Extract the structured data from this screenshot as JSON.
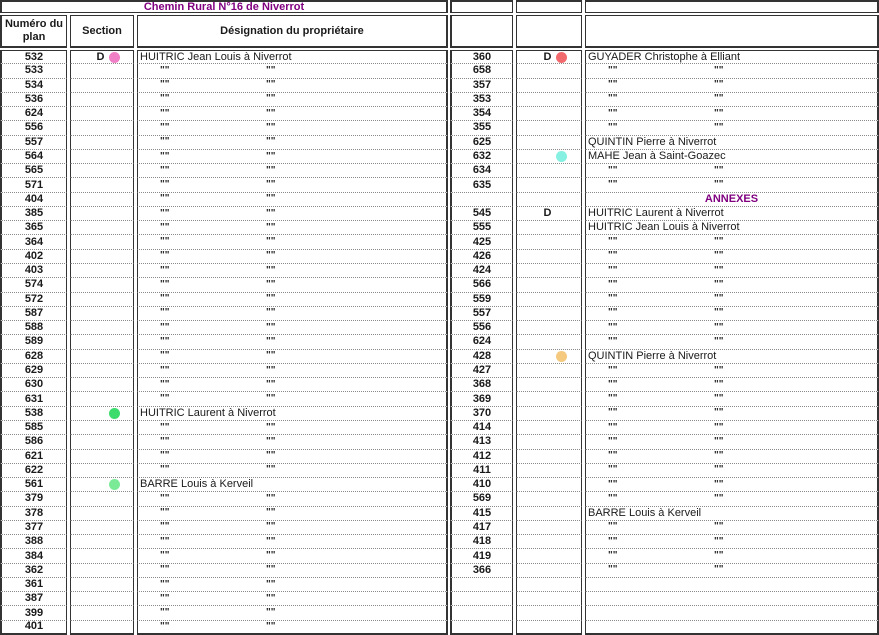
{
  "title": "Chemin Rural N°16 de Niverrot",
  "annexes_label": "ANNEXES",
  "ditto_mark": "\"\"",
  "headers": {
    "plan": "Numéro du plan",
    "section": "Section",
    "designation": "Désignation du propriétaire"
  },
  "colors": {
    "title_text": "#800080",
    "annexes_text": "#800080",
    "border": "#333333",
    "row_divider": "#8a8a8a",
    "dots": {
      "pink": "#F07FC5",
      "red": "#F16A6D",
      "cyan": "#86F0E2",
      "green": "#3CDC6C",
      "lightgreen": "#7BEA97",
      "orange": "#F5C97E"
    }
  },
  "left_table": {
    "rows": [
      {
        "plan": "532",
        "section": "D",
        "dot": "pink",
        "designation": "HUITRIC Jean Louis à Niverrot"
      },
      {
        "plan": "533",
        "ditto": true
      },
      {
        "plan": "534",
        "ditto": true
      },
      {
        "plan": "536",
        "ditto": true
      },
      {
        "plan": "624",
        "ditto": true
      },
      {
        "plan": "556",
        "ditto": true
      },
      {
        "plan": "557",
        "ditto": true
      },
      {
        "plan": "564",
        "ditto": true
      },
      {
        "plan": "565",
        "ditto": true
      },
      {
        "plan": "571",
        "ditto": true
      },
      {
        "plan": "404",
        "ditto": true
      },
      {
        "plan": "385",
        "ditto": true
      },
      {
        "plan": "365",
        "ditto": true
      },
      {
        "plan": "364",
        "ditto": true
      },
      {
        "plan": "402",
        "ditto": true
      },
      {
        "plan": "403",
        "ditto": true
      },
      {
        "plan": "574",
        "ditto": true
      },
      {
        "plan": "572",
        "ditto": true
      },
      {
        "plan": "587",
        "ditto": true
      },
      {
        "plan": "588",
        "ditto": true
      },
      {
        "plan": "589",
        "ditto": true
      },
      {
        "plan": "628",
        "ditto": true
      },
      {
        "plan": "629",
        "ditto": true
      },
      {
        "plan": "630",
        "ditto": true
      },
      {
        "plan": "631",
        "ditto": true
      },
      {
        "plan": "538",
        "dot": "green",
        "designation": "HUITRIC Laurent à Niverrot"
      },
      {
        "plan": "585",
        "ditto": true
      },
      {
        "plan": "586",
        "ditto": true
      },
      {
        "plan": "621",
        "ditto": true
      },
      {
        "plan": "622",
        "ditto": true
      },
      {
        "plan": "561",
        "dot": "lightgreen",
        "designation": "BARRE Louis à Kerveil"
      },
      {
        "plan": "379",
        "ditto": true
      },
      {
        "plan": "378",
        "ditto": true
      },
      {
        "plan": "377",
        "ditto": true
      },
      {
        "plan": "388",
        "ditto": true
      },
      {
        "plan": "384",
        "ditto": true
      },
      {
        "plan": "362",
        "ditto": true
      },
      {
        "plan": "361",
        "ditto": true
      },
      {
        "plan": "387",
        "ditto": true
      },
      {
        "plan": "399",
        "ditto": true
      },
      {
        "plan": "401",
        "ditto": true
      }
    ]
  },
  "right_table": {
    "rows": [
      {
        "plan": "360",
        "section": "D",
        "dot": "red",
        "designation": "GUYADER Christophe à Elliant"
      },
      {
        "plan": "658",
        "ditto": true
      },
      {
        "plan": "357",
        "ditto": true
      },
      {
        "plan": "353",
        "ditto": true
      },
      {
        "plan": "354",
        "ditto": true
      },
      {
        "plan": "355",
        "ditto": true
      },
      {
        "plan": "625",
        "designation": "QUINTIN Pierre à Niverrot"
      },
      {
        "plan": "632",
        "dot": "cyan",
        "designation": "MAHE Jean à Saint-Goazec"
      },
      {
        "plan": "634",
        "ditto": true
      },
      {
        "plan": "635",
        "ditto": true
      },
      {
        "plan": "",
        "annexes": true
      },
      {
        "plan": "545",
        "section": "D",
        "designation": "HUITRIC Laurent à Niverrot"
      },
      {
        "plan": "555",
        "designation": "HUITRIC Jean Louis à Niverrot"
      },
      {
        "plan": "425",
        "ditto": true
      },
      {
        "plan": "426",
        "ditto": true
      },
      {
        "plan": "424",
        "ditto": true
      },
      {
        "plan": "566",
        "ditto": true
      },
      {
        "plan": "559",
        "ditto": true
      },
      {
        "plan": "557",
        "ditto": true
      },
      {
        "plan": "556",
        "ditto": true
      },
      {
        "plan": "624",
        "ditto": true
      },
      {
        "plan": "428",
        "dot": "orange",
        "designation": "QUINTIN Pierre à Niverrot"
      },
      {
        "plan": "427",
        "ditto": true
      },
      {
        "plan": "368",
        "ditto": true
      },
      {
        "plan": "369",
        "ditto": true
      },
      {
        "plan": "370",
        "ditto": true
      },
      {
        "plan": "414",
        "ditto": true
      },
      {
        "plan": "413",
        "ditto": true
      },
      {
        "plan": "412",
        "ditto": true
      },
      {
        "plan": "411",
        "ditto": true
      },
      {
        "plan": "410",
        "ditto": true
      },
      {
        "plan": "569",
        "ditto": true
      },
      {
        "plan": "415",
        "designation": "BARRE Louis à Kerveil"
      },
      {
        "plan": "417",
        "ditto": true
      },
      {
        "plan": "418",
        "ditto": true
      },
      {
        "plan": "419",
        "ditto": true
      },
      {
        "plan": "366",
        "ditto": true
      },
      {
        "plan": ""
      },
      {
        "plan": ""
      },
      {
        "plan": ""
      },
      {
        "plan": ""
      }
    ]
  }
}
